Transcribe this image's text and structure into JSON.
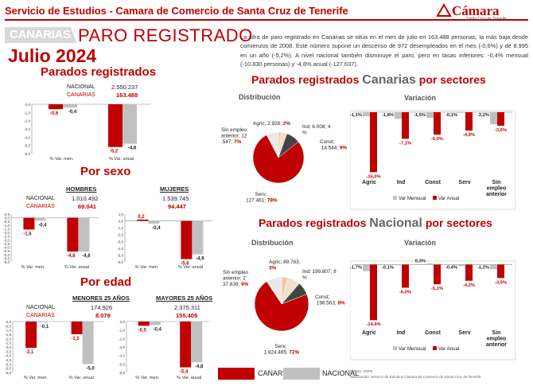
{
  "header": {
    "title": "Servicio de Estudios - Camara de Comercio de Santa Cruz de Tenerife",
    "logo_text": "Cámara",
    "logo_sub": "Santa Cruz de Tenerife"
  },
  "badge": "CANARIAS",
  "main_title": "PARO REGISTRADO",
  "month": "Julio 2024",
  "summary": "La cifra de paro registrado en Canarias se sitúa en el mes de julio en 163.488 personas, la más baja desde comienzos de 2008. Este número supone un descenso de 972 desempleados en el mes (-0,6%) y de 8.995 en un año (-5,2%). A nivel nacional también disminuye el paro, pero en tasas inferiores: -0,4% mensual (-10.830 personas) y -4,8% anual (-127.637).",
  "colors": {
    "canarias": "#c00000",
    "nacional": "#c0c0c0",
    "title_red": "#c00000"
  },
  "parados": {
    "title": "Parados registrados",
    "nacional_label": "NACIONAL",
    "nacional_value": "2.550.237",
    "canarias_label": "CANARIAS",
    "canarias_value": "163.488"
  },
  "sexo": {
    "title": "Por sexo",
    "hombres": {
      "head": "HOMBRES",
      "nacional": "1.010.492",
      "canarias": "69.041"
    },
    "mujeres": {
      "head": "MUJERES",
      "nacional": "1.539.745",
      "canarias": "94.447"
    },
    "nacional_label": "NACIONAL",
    "canarias_label": "CANARIAS"
  },
  "edad": {
    "title": "Por edad",
    "menores": {
      "head": "MENORES 25 AÑOS",
      "nacional": "174.926",
      "canarias": "8.079"
    },
    "mayores": {
      "head": "MAYORES 25 AÑOS",
      "nacional": "2.375.311",
      "canarias": "155.409"
    },
    "nacional_label": "NACIONAL",
    "canarias_label": "CANARIAS"
  },
  "canarias_sectores": {
    "title_a": "Parados registrados ",
    "title_b": "Canarias",
    "title_c": " por sectores",
    "dist_title": "Distribución",
    "var_title": "Variación"
  },
  "nacional_sectores": {
    "title_a": "Parados registrados ",
    "title_b": "Nacional",
    "title_c": " por sectores",
    "dist_title": "Distribución",
    "var_title": "Variación"
  },
  "legend": {
    "canarias": "CANARIAS",
    "nacional": "NACIONAL"
  },
  "fuente": "Fuente: SEPE",
  "elaboracion": "Elaboración: Servicio de Estudios Cámara de Comercio de Santa Cruz de Tenerife",
  "chart_data": [
    {
      "id": "total",
      "type": "bar",
      "categories": [
        "% Var. men.",
        "% Var. anual"
      ],
      "series": [
        {
          "name": "CANARIAS",
          "values": [
            -0.6,
            -5.2
          ],
          "labels": [
            "-0,6",
            "-5,2"
          ]
        },
        {
          "name": "NACIONAL",
          "values": [
            -0.4,
            -4.8
          ],
          "labels": [
            "-0,4",
            "-4,8"
          ]
        }
      ],
      "ylim": [
        -6,
        0
      ],
      "yticks": [
        "0,0",
        "-1,0",
        "-2,0",
        "-3,0",
        "-4,0",
        "-5,0",
        "-6,0"
      ]
    },
    {
      "id": "hombres",
      "type": "bar",
      "categories": [
        "% Var. men.",
        "% Var. anual"
      ],
      "series": [
        {
          "name": "CANARIAS",
          "values": [
            -1.6,
            -4.6
          ],
          "labels": [
            "-1,6",
            "-4,6"
          ]
        },
        {
          "name": "NACIONAL",
          "values": [
            -0.4,
            -4.6
          ],
          "labels": [
            "-0,4",
            "-4,6"
          ]
        }
      ],
      "ylim": [
        -6,
        0.5
      ],
      "yticks": [
        "0,5",
        "0,0",
        "-0,5",
        "-1,0",
        "-1,5",
        "-2,0",
        "-2,5",
        "-3,0",
        "-3,5",
        "-4,0",
        "-4,5",
        "-5,0",
        "-5,5",
        "-6,0"
      ]
    },
    {
      "id": "mujeres",
      "type": "bar",
      "categories": [
        "% Var. men.",
        "% Var. anual"
      ],
      "series": [
        {
          "name": "CANARIAS",
          "values": [
            0.2,
            -5.6
          ],
          "labels": [
            "0,2",
            "-5,6"
          ]
        },
        {
          "name": "NACIONAL",
          "values": [
            -0.4,
            -4.9
          ],
          "labels": [
            "-0,4",
            "-4,9"
          ]
        }
      ],
      "ylim": [
        -6,
        1
      ],
      "yticks": [
        "1,0",
        "0,0",
        "-1,0",
        "-2,0",
        "-3,0",
        "-4,0",
        "-5,0",
        "-6,0"
      ]
    },
    {
      "id": "menores",
      "type": "bar",
      "categories": [
        "% Var. men.",
        "% Var. anual"
      ],
      "series": [
        {
          "name": "CANARIAS",
          "values": [
            -3.1,
            -1.5
          ],
          "labels": [
            "-3,1",
            "-1,5"
          ]
        },
        {
          "name": "NACIONAL",
          "values": [
            -0.1,
            -5.0
          ],
          "labels": [
            "-0,1",
            "-5,0"
          ]
        }
      ],
      "ylim": [
        -6,
        0
      ],
      "yticks": [
        "0,0",
        "-0,5",
        "-1,0",
        "-1,5",
        "-2,0",
        "-2,5",
        "-3,0",
        "-3,5",
        "-4,0",
        "-4,5",
        "-5,0",
        "-5,5",
        "-6,0"
      ]
    },
    {
      "id": "mayores",
      "type": "bar",
      "categories": [
        "% Var. men.",
        "% Var. anual"
      ],
      "series": [
        {
          "name": "CANARIAS",
          "values": [
            -0.5,
            -5.4
          ],
          "labels": [
            "-0,5",
            "-5,4"
          ]
        },
        {
          "name": "NACIONAL",
          "values": [
            -0.4,
            -4.8
          ],
          "labels": [
            "-0,4",
            "-4,8"
          ]
        }
      ],
      "ylim": [
        -6,
        0
      ],
      "yticks": [
        "0,0",
        "-1,0",
        "-2,0",
        "-3,0",
        "-4,0",
        "-5,0",
        "-6,0"
      ]
    },
    {
      "id": "can_dist",
      "type": "pie",
      "slices": [
        {
          "label": "Agric; 2.928; 2%",
          "name": "Agric",
          "value": 2928,
          "pct": 2
        },
        {
          "label": "Ind; 6.008; 4%",
          "name": "Ind",
          "value": 6008,
          "pct": 4
        },
        {
          "label": "Const; 14.544; 9%",
          "name": "Const",
          "value": 14544,
          "pct": 9
        },
        {
          "label": "Serv; 127.461; 78%",
          "name": "Serv",
          "value": 127461,
          "pct": 78
        },
        {
          "label": "Sin empleo anterior; 12.547; 7%",
          "name": "Sin empleo anterior",
          "value": 12547,
          "pct": 7
        }
      ]
    },
    {
      "id": "can_var",
      "type": "bar",
      "categories": [
        "Agric",
        "Ind",
        "Const",
        "Serv",
        "Sin empleo anterior"
      ],
      "series": [
        {
          "name": "Var Mensual",
          "values": [
            -1.1,
            -1.8,
            -1.5,
            -0.1,
            -3.2
          ],
          "labels": [
            "-1,1%",
            "-1,8%",
            "-1,5%",
            "-0,1%",
            "-3,2%"
          ]
        },
        {
          "name": "Var Anual",
          "values": [
            -16.0,
            -7.1,
            -6.0,
            -4.9,
            -3.6
          ],
          "labels": [
            "-16,0%",
            "-7,1%",
            "-6,0%",
            "-4,9%",
            "-3,6%"
          ]
        }
      ],
      "ylim": [
        -17,
        0
      ]
    },
    {
      "id": "nac_dist",
      "type": "pie",
      "slices": [
        {
          "label": "Agric; 89.763; 3%",
          "name": "Agric",
          "value": 89763,
          "pct": 3
        },
        {
          "label": "Ind; 199.807; 8%",
          "name": "Ind",
          "value": 199807,
          "pct": 8
        },
        {
          "label": "Const; 198.563; 8%",
          "name": "Const",
          "value": 198563,
          "pct": 8
        },
        {
          "label": "Serv; 1.824.465; 72%",
          "name": "Serv",
          "value": 1824465,
          "pct": 72
        },
        {
          "label": "Sin empleo anterior; 237.639; 9%",
          "name": "Sin empleo anterior",
          "value": 237639,
          "pct": 9
        }
      ]
    },
    {
      "id": "nac_var",
      "type": "bar",
      "categories": [
        "Agric",
        "Ind",
        "Const",
        "Serv",
        "Sin empleo anterior"
      ],
      "series": [
        {
          "name": "Var Mensual",
          "values": [
            -1.7,
            -0.1,
            0.3,
            -0.4,
            -1.2
          ],
          "labels": [
            "-1,7%",
            "-0,1%",
            "0,3%",
            "-0,4%",
            "-1,2%"
          ]
        },
        {
          "name": "Var Anual",
          "values": [
            -14.4,
            -6.0,
            -5.1,
            -4.2,
            -3.5
          ],
          "labels": [
            "-14,4%",
            "-6,0%",
            "-5,1%",
            "-4,2%",
            "-3,5%"
          ]
        }
      ],
      "ylim": [
        -16,
        0.5
      ]
    }
  ]
}
